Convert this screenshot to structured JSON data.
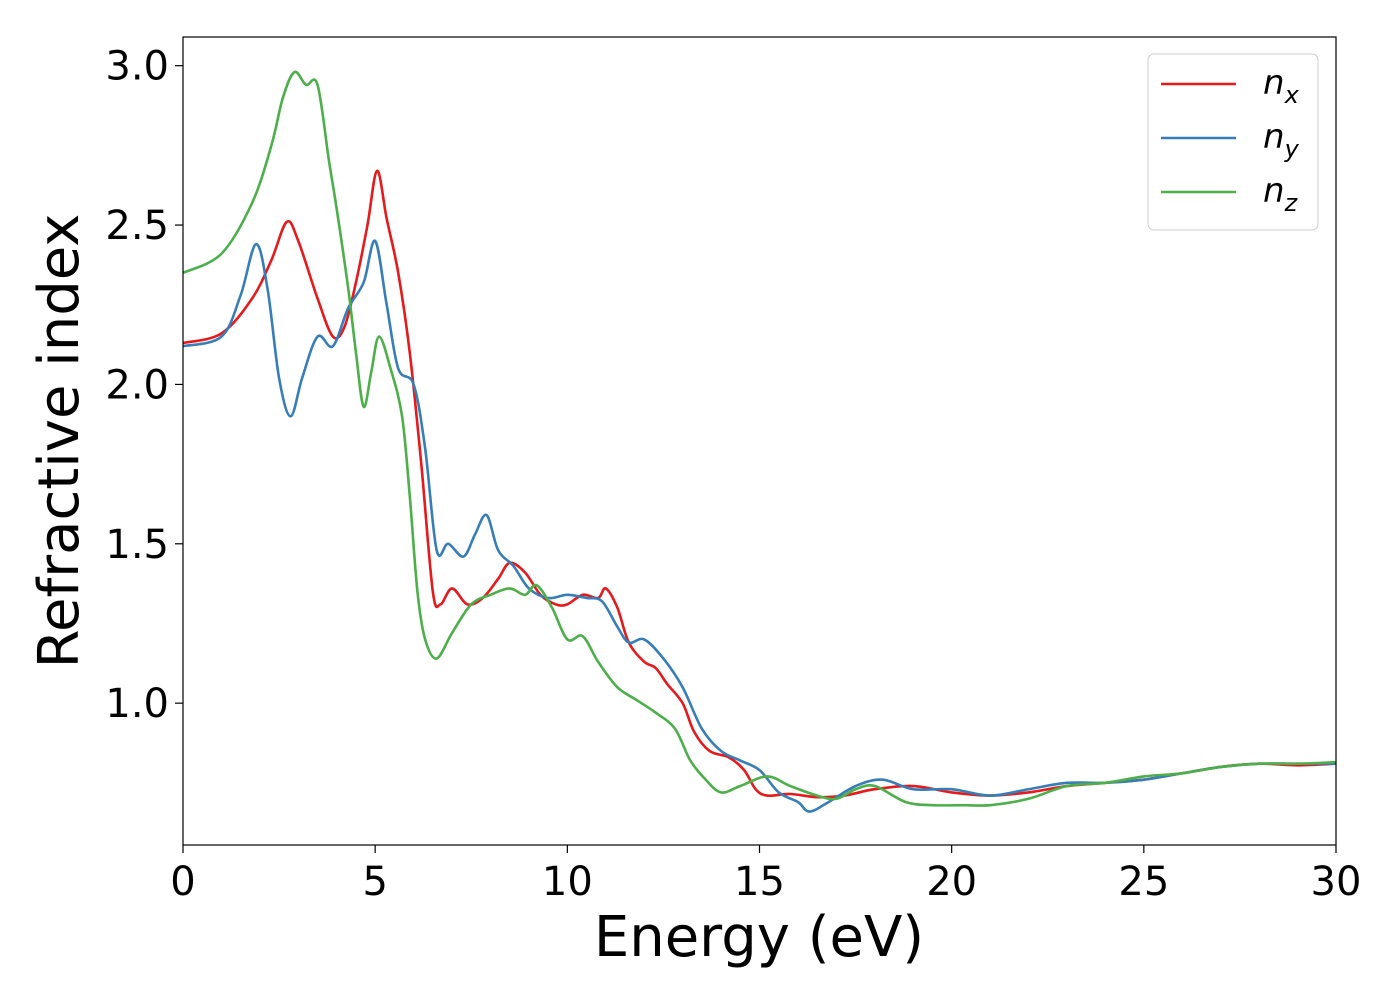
{
  "chart_data": {
    "type": "line",
    "xlabel": "Energy (eV)",
    "ylabel": "Refractive index",
    "xlim": [
      0,
      30
    ],
    "ylim": [
      0.555,
      3.09
    ],
    "x_ticks": [
      0,
      5,
      10,
      15,
      20,
      25,
      30
    ],
    "x_tick_labels": [
      "0",
      "5",
      "10",
      "15",
      "20",
      "25",
      "30"
    ],
    "y_ticks": [
      1.0,
      1.5,
      2.0,
      2.5,
      3.0
    ],
    "y_tick_labels": [
      "1.0",
      "1.5",
      "2.0",
      "2.5",
      "3.0"
    ],
    "grid": false,
    "legend_position": "top-right",
    "series": [
      {
        "name": "n_x",
        "label_base": "n",
        "label_sub": "x",
        "color": "#e41a1c",
        "points": [
          [
            0,
            2.13
          ],
          [
            1.0,
            2.16
          ],
          [
            1.8,
            2.27
          ],
          [
            2.3,
            2.39
          ],
          [
            2.7,
            2.51
          ],
          [
            3.0,
            2.45
          ],
          [
            3.5,
            2.27
          ],
          [
            3.9,
            2.15
          ],
          [
            4.2,
            2.18
          ],
          [
            4.5,
            2.32
          ],
          [
            4.8,
            2.5
          ],
          [
            5.05,
            2.67
          ],
          [
            5.3,
            2.52
          ],
          [
            5.6,
            2.35
          ],
          [
            5.9,
            2.1
          ],
          [
            6.2,
            1.75
          ],
          [
            6.5,
            1.35
          ],
          [
            6.7,
            1.31
          ],
          [
            7.0,
            1.36
          ],
          [
            7.4,
            1.31
          ],
          [
            7.8,
            1.33
          ],
          [
            8.2,
            1.39
          ],
          [
            8.5,
            1.44
          ],
          [
            8.9,
            1.41
          ],
          [
            9.3,
            1.34
          ],
          [
            9.7,
            1.31
          ],
          [
            10.0,
            1.31
          ],
          [
            10.4,
            1.34
          ],
          [
            10.8,
            1.33
          ],
          [
            11.0,
            1.36
          ],
          [
            11.3,
            1.3
          ],
          [
            11.6,
            1.19
          ],
          [
            12.0,
            1.13
          ],
          [
            12.3,
            1.11
          ],
          [
            12.6,
            1.06
          ],
          [
            13.0,
            1.0
          ],
          [
            13.3,
            0.91
          ],
          [
            13.7,
            0.85
          ],
          [
            14.2,
            0.83
          ],
          [
            14.6,
            0.79
          ],
          [
            14.9,
            0.73
          ],
          [
            15.2,
            0.71
          ],
          [
            15.8,
            0.715
          ],
          [
            16.5,
            0.705
          ],
          [
            17.2,
            0.71
          ],
          [
            18.0,
            0.73
          ],
          [
            19.0,
            0.74
          ],
          [
            20.0,
            0.72
          ],
          [
            21.0,
            0.71
          ],
          [
            22.0,
            0.72
          ],
          [
            23.0,
            0.74
          ],
          [
            24.0,
            0.75
          ],
          [
            25.0,
            0.76
          ],
          [
            26.0,
            0.78
          ],
          [
            27.0,
            0.8
          ],
          [
            28.0,
            0.81
          ],
          [
            29.0,
            0.805
          ],
          [
            30.0,
            0.81
          ]
        ]
      },
      {
        "name": "n_y",
        "label_base": "n",
        "label_sub": "y",
        "color": "#377eb8",
        "points": [
          [
            0,
            2.12
          ],
          [
            1.0,
            2.15
          ],
          [
            1.5,
            2.28
          ],
          [
            1.9,
            2.44
          ],
          [
            2.2,
            2.3
          ],
          [
            2.5,
            2.02
          ],
          [
            2.8,
            1.9
          ],
          [
            3.1,
            2.02
          ],
          [
            3.5,
            2.15
          ],
          [
            3.9,
            2.12
          ],
          [
            4.3,
            2.24
          ],
          [
            4.7,
            2.32
          ],
          [
            5.0,
            2.45
          ],
          [
            5.3,
            2.25
          ],
          [
            5.6,
            2.05
          ],
          [
            6.0,
            2.0
          ],
          [
            6.3,
            1.8
          ],
          [
            6.6,
            1.48
          ],
          [
            6.9,
            1.5
          ],
          [
            7.3,
            1.46
          ],
          [
            7.6,
            1.53
          ],
          [
            7.9,
            1.59
          ],
          [
            8.2,
            1.48
          ],
          [
            8.6,
            1.43
          ],
          [
            9.0,
            1.36
          ],
          [
            9.5,
            1.33
          ],
          [
            10.0,
            1.34
          ],
          [
            10.5,
            1.33
          ],
          [
            10.9,
            1.32
          ],
          [
            11.3,
            1.24
          ],
          [
            11.6,
            1.19
          ],
          [
            12.0,
            1.2
          ],
          [
            12.5,
            1.14
          ],
          [
            13.0,
            1.05
          ],
          [
            13.5,
            0.92
          ],
          [
            14.0,
            0.85
          ],
          [
            14.5,
            0.82
          ],
          [
            15.0,
            0.79
          ],
          [
            15.5,
            0.72
          ],
          [
            16.0,
            0.69
          ],
          [
            16.3,
            0.66
          ],
          [
            16.8,
            0.69
          ],
          [
            17.5,
            0.74
          ],
          [
            18.2,
            0.76
          ],
          [
            19.0,
            0.73
          ],
          [
            20.0,
            0.73
          ],
          [
            21.0,
            0.71
          ],
          [
            22.0,
            0.73
          ],
          [
            23.0,
            0.75
          ],
          [
            24.0,
            0.75
          ],
          [
            25.0,
            0.76
          ],
          [
            26.0,
            0.78
          ],
          [
            27.0,
            0.8
          ],
          [
            28.0,
            0.81
          ],
          [
            29.0,
            0.81
          ],
          [
            30.0,
            0.81
          ]
        ]
      },
      {
        "name": "n_z",
        "label_base": "n",
        "label_sub": "z",
        "color": "#4daf4a",
        "points": [
          [
            0,
            2.35
          ],
          [
            1.0,
            2.41
          ],
          [
            1.8,
            2.57
          ],
          [
            2.3,
            2.75
          ],
          [
            2.6,
            2.9
          ],
          [
            2.9,
            2.98
          ],
          [
            3.2,
            2.94
          ],
          [
            3.5,
            2.94
          ],
          [
            3.8,
            2.7
          ],
          [
            4.0,
            2.55
          ],
          [
            4.3,
            2.3
          ],
          [
            4.5,
            2.1
          ],
          [
            4.7,
            1.93
          ],
          [
            4.9,
            2.04
          ],
          [
            5.1,
            2.15
          ],
          [
            5.4,
            2.05
          ],
          [
            5.7,
            1.9
          ],
          [
            5.9,
            1.65
          ],
          [
            6.1,
            1.35
          ],
          [
            6.3,
            1.2
          ],
          [
            6.6,
            1.14
          ],
          [
            7.0,
            1.22
          ],
          [
            7.5,
            1.31
          ],
          [
            8.0,
            1.34
          ],
          [
            8.5,
            1.36
          ],
          [
            8.9,
            1.34
          ],
          [
            9.2,
            1.37
          ],
          [
            9.6,
            1.3
          ],
          [
            10.0,
            1.2
          ],
          [
            10.4,
            1.21
          ],
          [
            10.8,
            1.13
          ],
          [
            11.3,
            1.05
          ],
          [
            11.8,
            1.01
          ],
          [
            12.3,
            0.97
          ],
          [
            12.8,
            0.92
          ],
          [
            13.2,
            0.82
          ],
          [
            13.6,
            0.76
          ],
          [
            14.0,
            0.72
          ],
          [
            14.5,
            0.74
          ],
          [
            15.2,
            0.77
          ],
          [
            15.8,
            0.74
          ],
          [
            16.5,
            0.71
          ],
          [
            17.0,
            0.7
          ],
          [
            17.5,
            0.73
          ],
          [
            18.0,
            0.74
          ],
          [
            18.8,
            0.69
          ],
          [
            19.5,
            0.68
          ],
          [
            20.3,
            0.68
          ],
          [
            21.0,
            0.68
          ],
          [
            22.0,
            0.7
          ],
          [
            23.0,
            0.74
          ],
          [
            24.0,
            0.75
          ],
          [
            25.0,
            0.77
          ],
          [
            26.0,
            0.78
          ],
          [
            27.0,
            0.8
          ],
          [
            28.0,
            0.81
          ],
          [
            29.0,
            0.81
          ],
          [
            30.0,
            0.815
          ]
        ]
      }
    ]
  }
}
